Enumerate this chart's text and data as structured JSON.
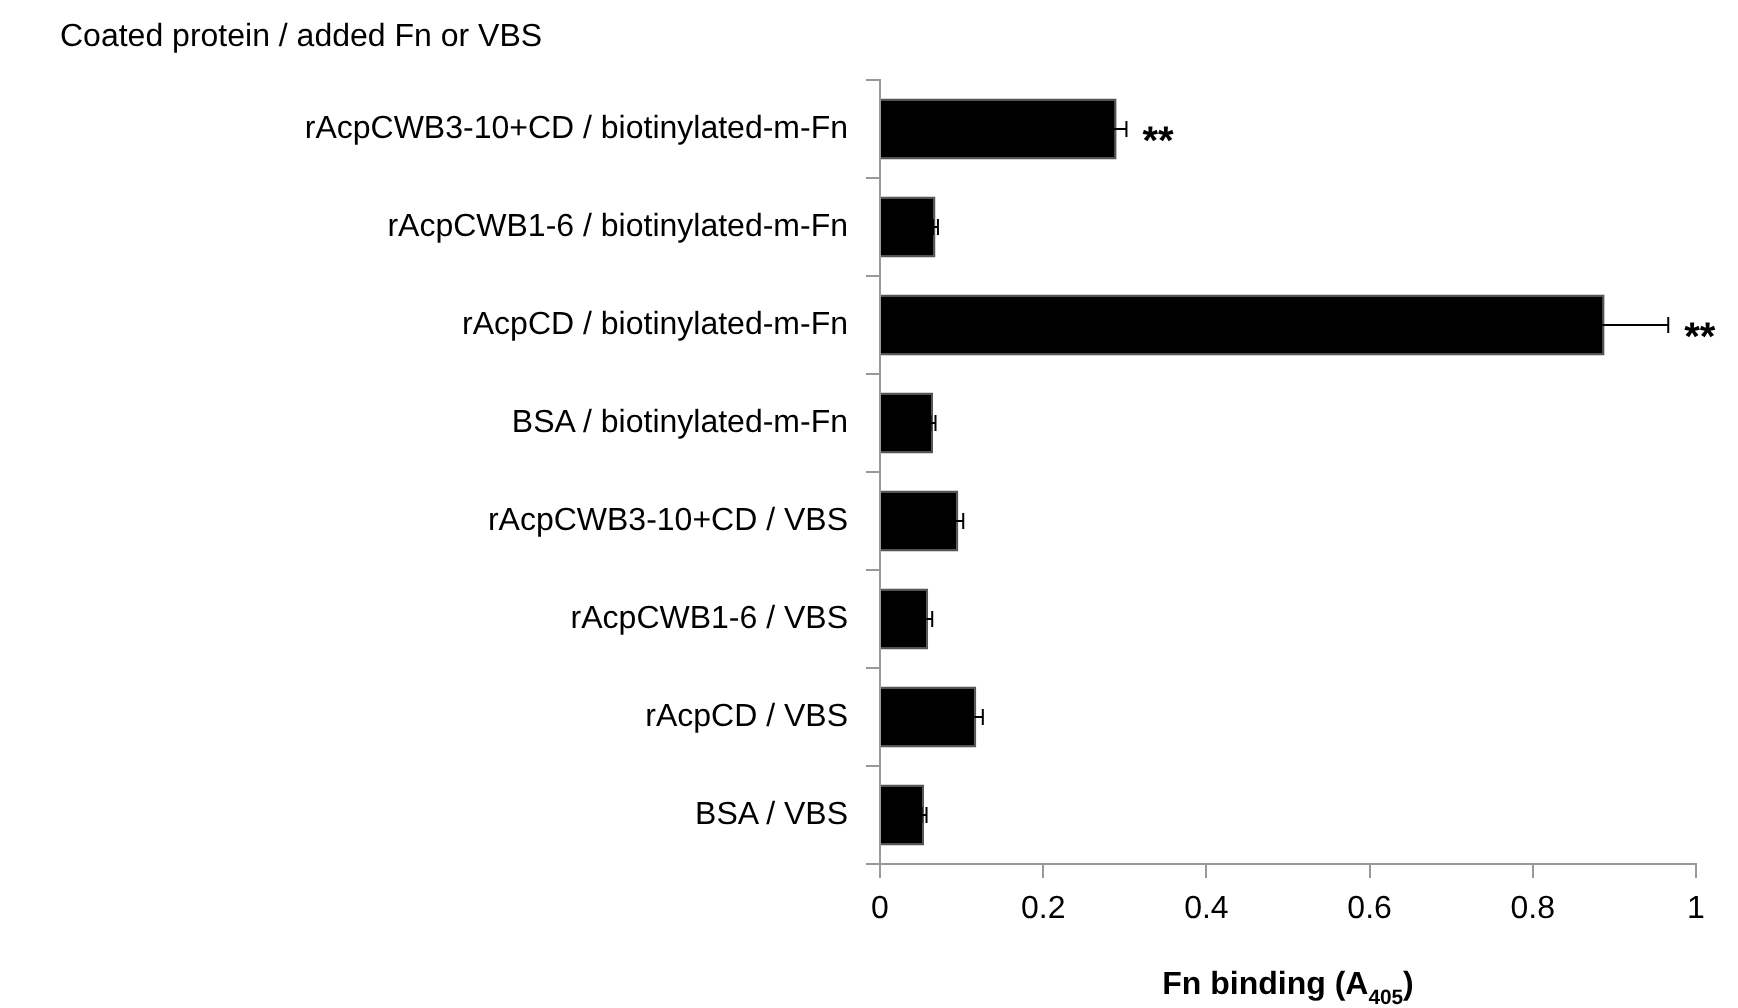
{
  "chart_data": {
    "type": "bar",
    "orientation": "horizontal",
    "ylabel": "Coated protein / added Fn or VBS",
    "xlabel": "Fn binding (A$_{405}$)",
    "categories": [
      "rAcpCWB3-10+CD / biotinylated-m-Fn",
      "rAcpCWB1-6 / biotinylated-m-Fn",
      "rAcpCD / biotinylated-m-Fn",
      "BSA / biotinylated-m-Fn",
      "rAcpCWB3-10+CD / VBS",
      "rAcpCWB1-6 / VBS",
      "rAcpCD / VBS",
      "BSA / VBS"
    ],
    "values": [
      0.29,
      0.068,
      0.888,
      0.065,
      0.096,
      0.059,
      0.118,
      0.054
    ],
    "errors": [
      0.012,
      0.003,
      0.078,
      0.003,
      0.006,
      0.005,
      0.008,
      0.003
    ],
    "color": "#000000",
    "xlim": [
      0,
      1
    ],
    "xticks": [
      0,
      0.2,
      0.4,
      0.6,
      0.8,
      1
    ],
    "grid": false,
    "legend": false,
    "annotations": [
      {
        "text": "**",
        "x": 0.29,
        "y": "rAcpCWB3-10+CD / biotinylated-m-Fn"
      },
      {
        "text": "**",
        "x": 0.888,
        "y": "rAcpCD / biotinylated-m-Fn"
      }
    ]
  }
}
